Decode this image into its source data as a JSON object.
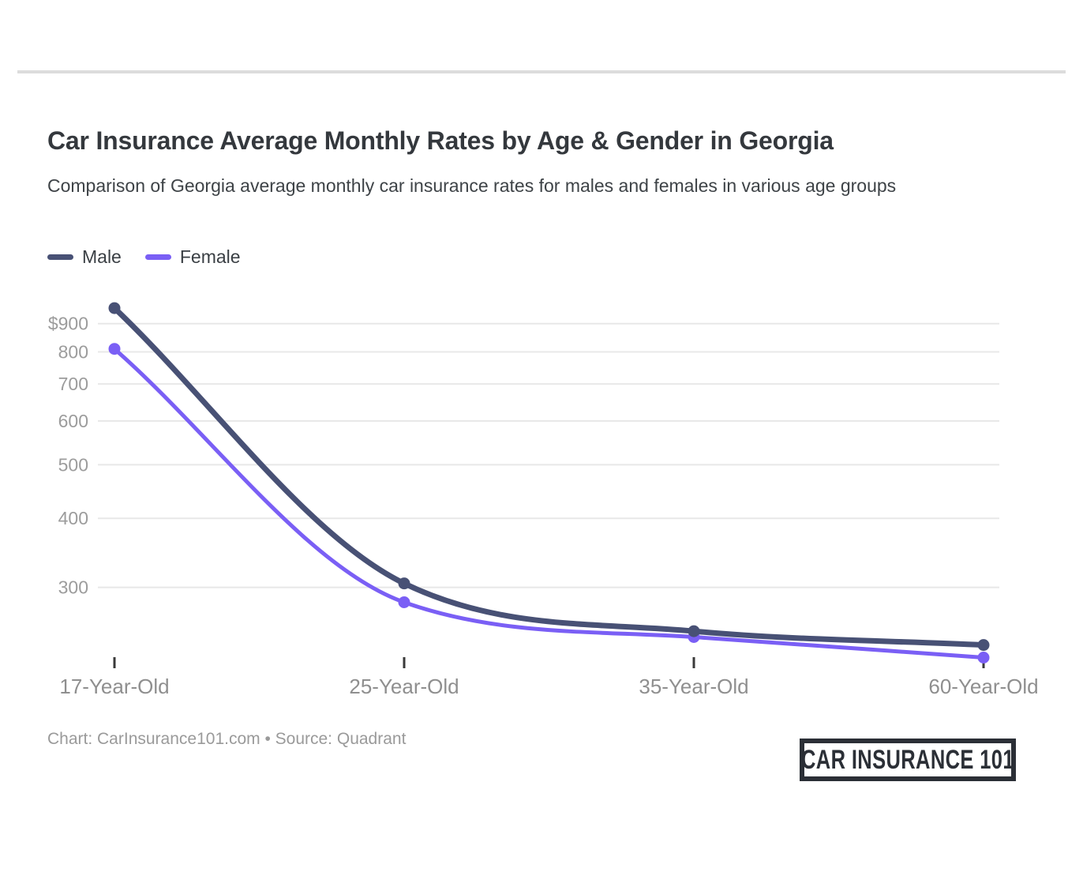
{
  "page": {
    "title": "Car Insurance Average Monthly Rates by Age & Gender in Georgia",
    "subtitle": "Comparison of Georgia average monthly car insurance rates for males and females in various age groups",
    "footer": "Chart: CarInsurance101.com • Source: Quadrant",
    "logo_text": "CAR INSURANCE 101"
  },
  "legend": {
    "items": [
      {
        "label": "Male",
        "color": "#485175"
      },
      {
        "label": "Female",
        "color": "#7A5FF5"
      }
    ]
  },
  "chart_data": {
    "type": "line",
    "title": "Car Insurance Average Monthly Rates by Age & Gender in Georgia",
    "xlabel": "",
    "ylabel": "",
    "categories": [
      "17-Year-Old",
      "25-Year-Old",
      "35-Year-Old",
      "60-Year-Old"
    ],
    "series": [
      {
        "name": "Male",
        "color": "#485175",
        "values": [
          960,
          305,
          250,
          236
        ]
      },
      {
        "name": "Female",
        "color": "#7A5FF5",
        "values": [
          810,
          282,
          244,
          224
        ]
      }
    ],
    "y_scale": "log",
    "y_ticks": {
      "values": [
        900,
        800,
        700,
        600,
        500,
        400,
        300
      ],
      "labels": [
        "$900",
        "800",
        "700",
        "600",
        "500",
        "400",
        "300"
      ]
    },
    "ylim": [
      215,
      975
    ],
    "grid": "horizontal",
    "legend_position": "top-left"
  },
  "colors": {
    "grid": "#e8e8e8",
    "y_axis_text": "#9c9c9c",
    "x_axis_text": "#8f8f8f",
    "tick_mark": "#3a3a3a",
    "divider": "#dcdcdc",
    "title_text": "#34383d",
    "subtitle_text": "#3e4347",
    "footer_text": "#9a9a9a",
    "logo": "#2b2f36"
  }
}
